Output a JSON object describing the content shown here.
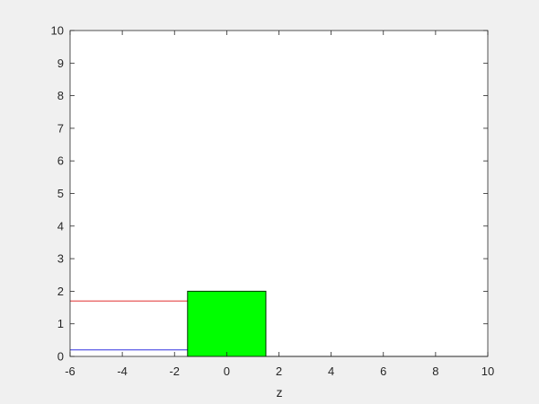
{
  "chart_data": {
    "type": "line",
    "title": "",
    "xlabel": "z",
    "ylabel": "",
    "xlim": [
      -6,
      10
    ],
    "ylim": [
      0,
      10
    ],
    "xticks": [
      -6,
      -4,
      -2,
      0,
      2,
      4,
      6,
      8,
      10
    ],
    "yticks": [
      0,
      1,
      2,
      3,
      4,
      5,
      6,
      7,
      8,
      9,
      10
    ],
    "grid": false,
    "colors": {
      "figure_bg": "#f0f0f0",
      "axes_bg": "#ffffff",
      "axis": "#262626",
      "rect_fill": "#00ff00",
      "rect_edge": "#003300"
    },
    "series": [
      {
        "color": "#e03030",
        "x": [
          -6,
          -1.5
        ],
        "y": [
          1.7,
          1.7
        ]
      },
      {
        "color": "#3030e0",
        "x": [
          -6,
          -1.5
        ],
        "y": [
          0.2,
          0.2
        ]
      },
      {
        "color": "#262626",
        "x": [
          -1.5,
          10
        ],
        "y": [
          0.0,
          0.0
        ]
      }
    ],
    "rectangles": [
      {
        "x": -1.5,
        "y": 0,
        "width": 3.0,
        "height": 2.0
      }
    ]
  }
}
